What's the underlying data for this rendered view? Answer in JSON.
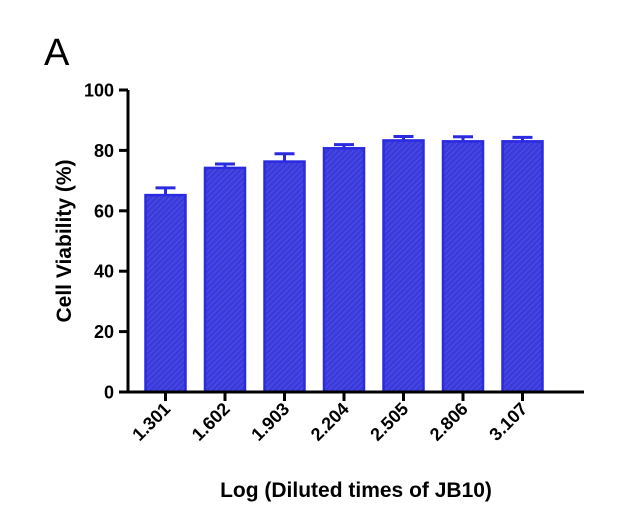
{
  "panel_label": "A",
  "chart_data": {
    "type": "bar",
    "categories": [
      "1.301",
      "1.602",
      "1.903",
      "2.204",
      "2.505",
      "2.806",
      "3.107"
    ],
    "values": [
      65.2,
      74.2,
      76.3,
      80.7,
      83.3,
      83.0,
      83.0
    ],
    "errors": [
      2.4,
      1.3,
      2.6,
      1.2,
      1.3,
      1.5,
      1.3
    ],
    "title": "",
    "xlabel": "Log (Diluted times of JB10)",
    "ylabel": "Cell Viability (%)",
    "ylim": [
      0,
      100
    ],
    "yticks": [
      0,
      20,
      40,
      60,
      80,
      100
    ],
    "grid": false,
    "colors": {
      "bar_fill": "#3b3bdc",
      "bar_edge": "#2a2ae0",
      "hatch": "#5a5ae8",
      "axis": "#000000"
    }
  }
}
